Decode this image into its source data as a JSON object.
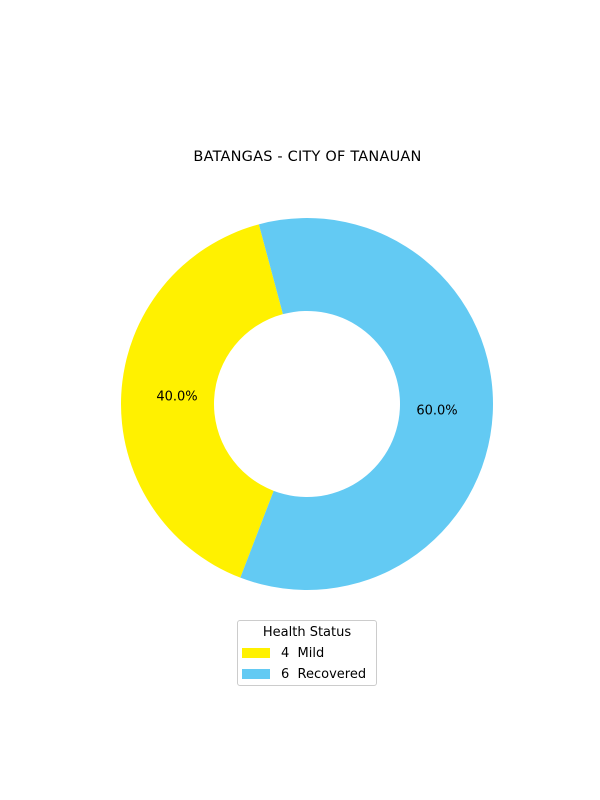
{
  "chart_data": {
    "type": "pie",
    "variant": "donut",
    "title": "BATANGAS - CITY OF TANAUAN",
    "legend_title": "Health Status",
    "legend_placement": "bottom-center",
    "slices": [
      {
        "label": "Mild",
        "count": 4,
        "percent": 40.0,
        "percent_label": "40.0%",
        "legend_label": "4  Mild",
        "color": "#fff100"
      },
      {
        "label": "Recovered",
        "count": 6,
        "percent": 60.0,
        "percent_label": "60.0%",
        "legend_label": "6  Recovered",
        "color": "#63caf3"
      }
    ]
  }
}
